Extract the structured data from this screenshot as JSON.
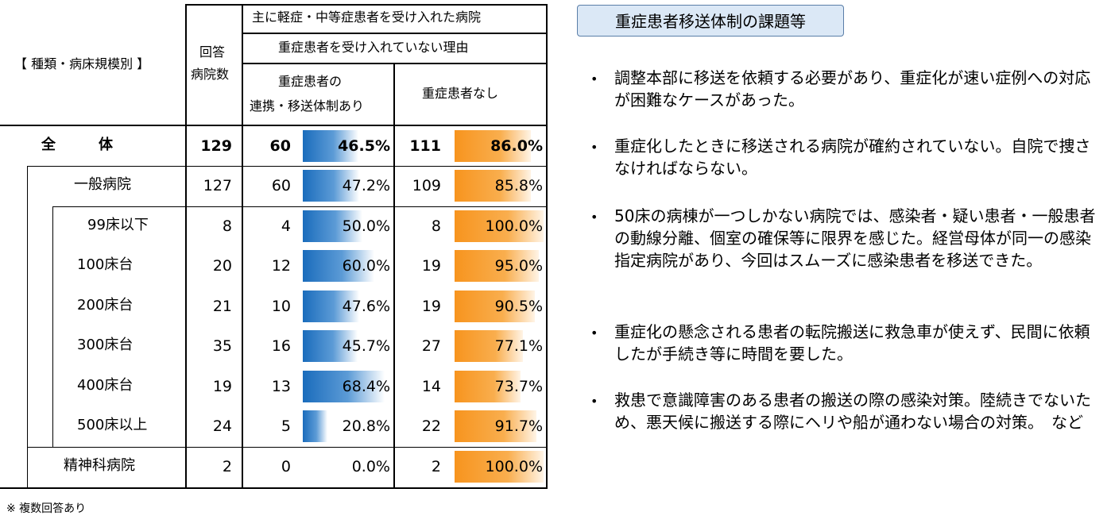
{
  "table": {
    "header": {
      "category": "【 種類・病床規模別 】",
      "respondents_line1": "回答",
      "respondents_line2": "病院数",
      "group_title": "主に軽症・中等症患者を受け入れた病院",
      "reason_title": "重症患者を受け入れていない理由",
      "col_a_line1": "重症患者の",
      "col_a_line2": "連携・移送体制あり",
      "col_b": "重症患者なし"
    },
    "rows": [
      {
        "label": "全　　　体",
        "respondents": "129",
        "a_count": "60",
        "a_pct": "46.5%",
        "a_value": 46.5,
        "b_count": "111",
        "b_pct": "86.0%",
        "b_value": 86.0
      },
      {
        "label": "一般病院",
        "respondents": "127",
        "a_count": "60",
        "a_pct": "47.2%",
        "a_value": 47.2,
        "b_count": "109",
        "b_pct": "85.8%",
        "b_value": 85.8
      },
      {
        "label": "99床以下",
        "respondents": "8",
        "a_count": "4",
        "a_pct": "50.0%",
        "a_value": 50.0,
        "b_count": "8",
        "b_pct": "100.0%",
        "b_value": 100.0
      },
      {
        "label": "100床台",
        "respondents": "20",
        "a_count": "12",
        "a_pct": "60.0%",
        "a_value": 60.0,
        "b_count": "19",
        "b_pct": "95.0%",
        "b_value": 95.0
      },
      {
        "label": "200床台",
        "respondents": "21",
        "a_count": "10",
        "a_pct": "47.6%",
        "a_value": 47.6,
        "b_count": "19",
        "b_pct": "90.5%",
        "b_value": 90.5
      },
      {
        "label": "300床台",
        "respondents": "35",
        "a_count": "16",
        "a_pct": "45.7%",
        "a_value": 45.7,
        "b_count": "27",
        "b_pct": "77.1%",
        "b_value": 77.1
      },
      {
        "label": "400床台",
        "respondents": "19",
        "a_count": "13",
        "a_pct": "68.4%",
        "a_value": 68.4,
        "b_count": "14",
        "b_pct": "73.7%",
        "b_value": 73.7
      },
      {
        "label": "500床以上",
        "respondents": "24",
        "a_count": "5",
        "a_pct": "20.8%",
        "a_value": 20.8,
        "b_count": "22",
        "b_pct": "91.7%",
        "b_value": 91.7
      },
      {
        "label": "精神科病院",
        "respondents": "2",
        "a_count": "0",
        "a_pct": "0.0%",
        "a_value": 0.0,
        "b_count": "2",
        "b_pct": "100.0%",
        "b_value": 100.0
      }
    ],
    "note": "※ 複数回答あり"
  },
  "panel": {
    "title": "重症患者移送体制の課題等",
    "bullet": "•",
    "items": [
      "調整本部に移送を依頼する必要があり、重症化が速い症例への対応が困難なケースがあった。",
      "重症化したときに移送される病院が確約されていない。自院で捜さなければならない。",
      "50床の病棟が一つしかない病院では、感染者・疑い患者・一般患者の動線分離、個室の確保等に限界を感じた。経営母体が同一の感染指定病院があり、今回はスムーズに感染患者を移送できた。",
      "重症化の懸念される患者の転院搬送に救急車が使えず、民間に依頼したが手続き等に時間を要した。",
      "救患で意識障害のある患者の搬送の際の感染対策。陸続きでないため、悪天候に搬送する際にヘリや船が通わない場合の対策。　など"
    ]
  },
  "colors": {
    "bar_a": "#1a6cbc",
    "bar_b": "#f7941e",
    "panel_title_bg": "#dbe8f6",
    "panel_title_border": "#5a7ea8"
  }
}
